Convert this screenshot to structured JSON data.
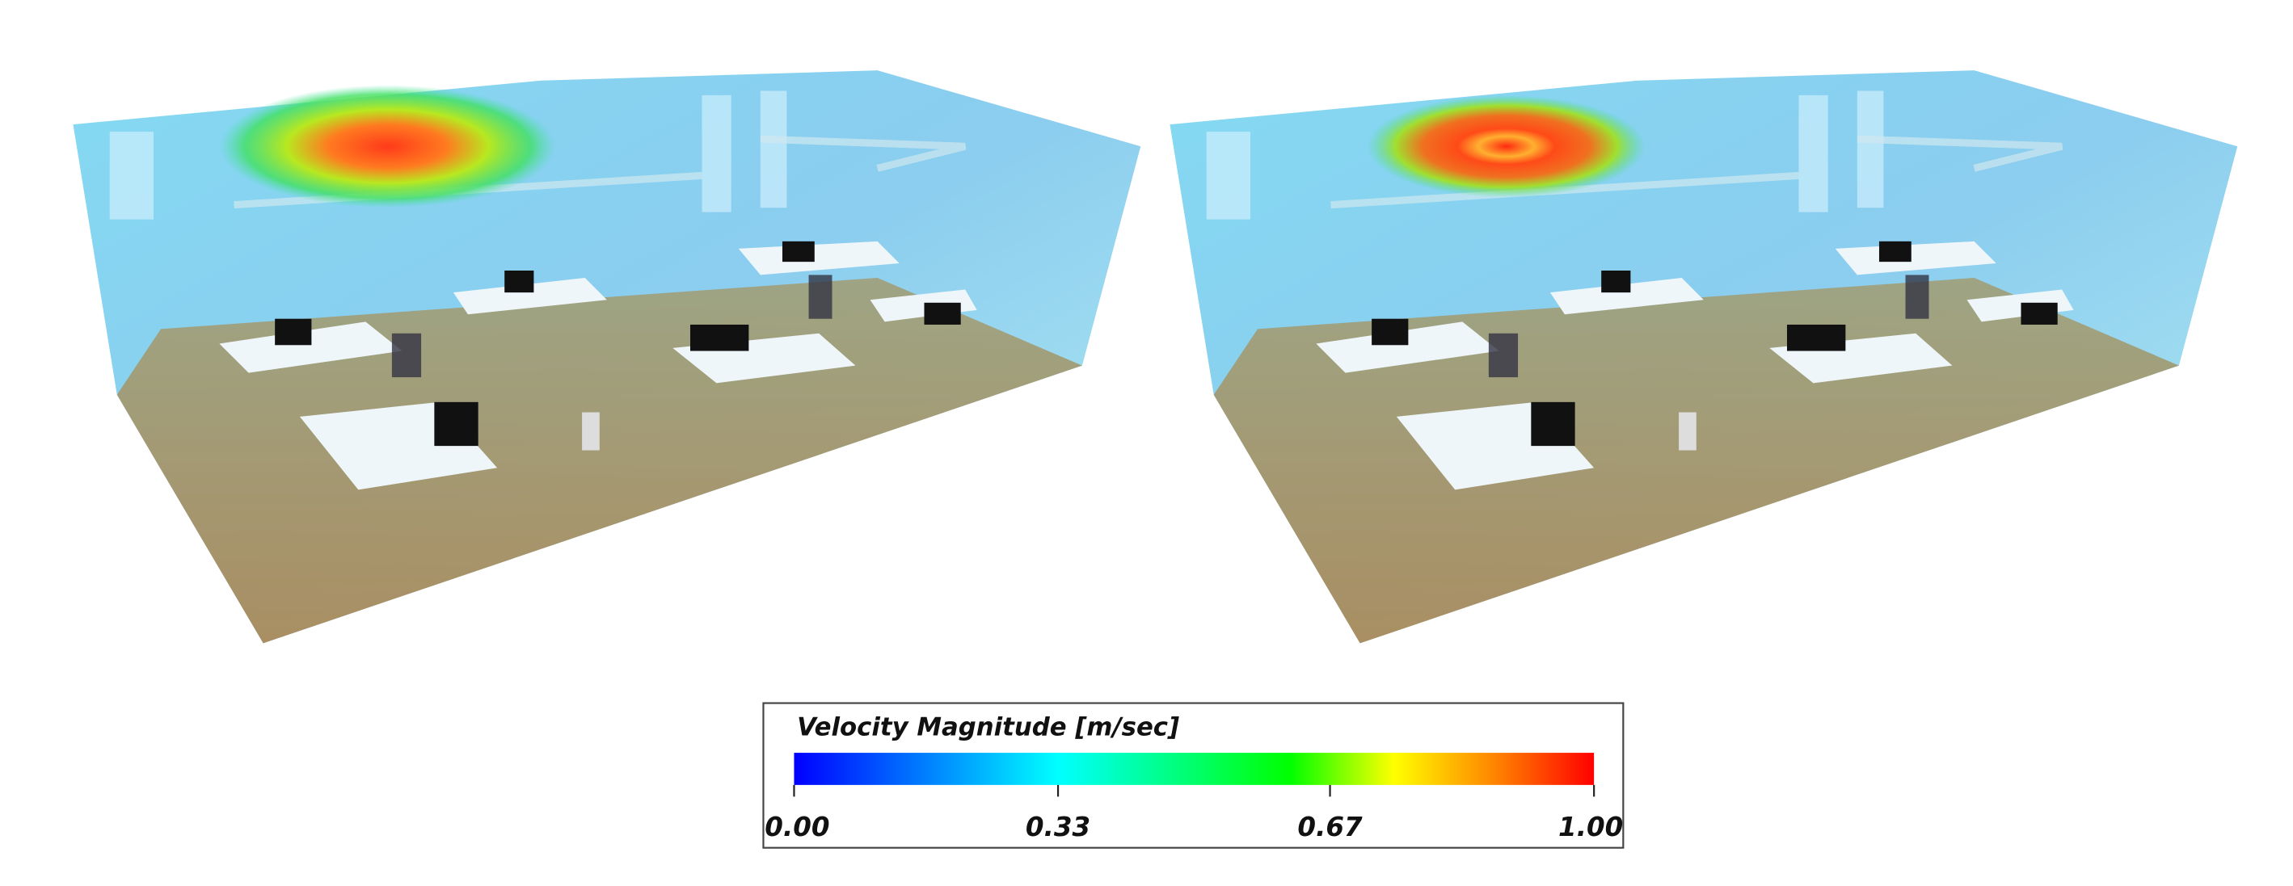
{
  "legend": {
    "title": "Velocity Magnitude [m/sec]",
    "range": [
      0,
      1
    ],
    "ticks": [
      {
        "value": 0,
        "label": "0.00"
      },
      {
        "value": 0.33,
        "label": "0.33"
      },
      {
        "value": 0.67,
        "label": "0.67"
      },
      {
        "value": 1,
        "label": "1.00"
      }
    ]
  }
}
